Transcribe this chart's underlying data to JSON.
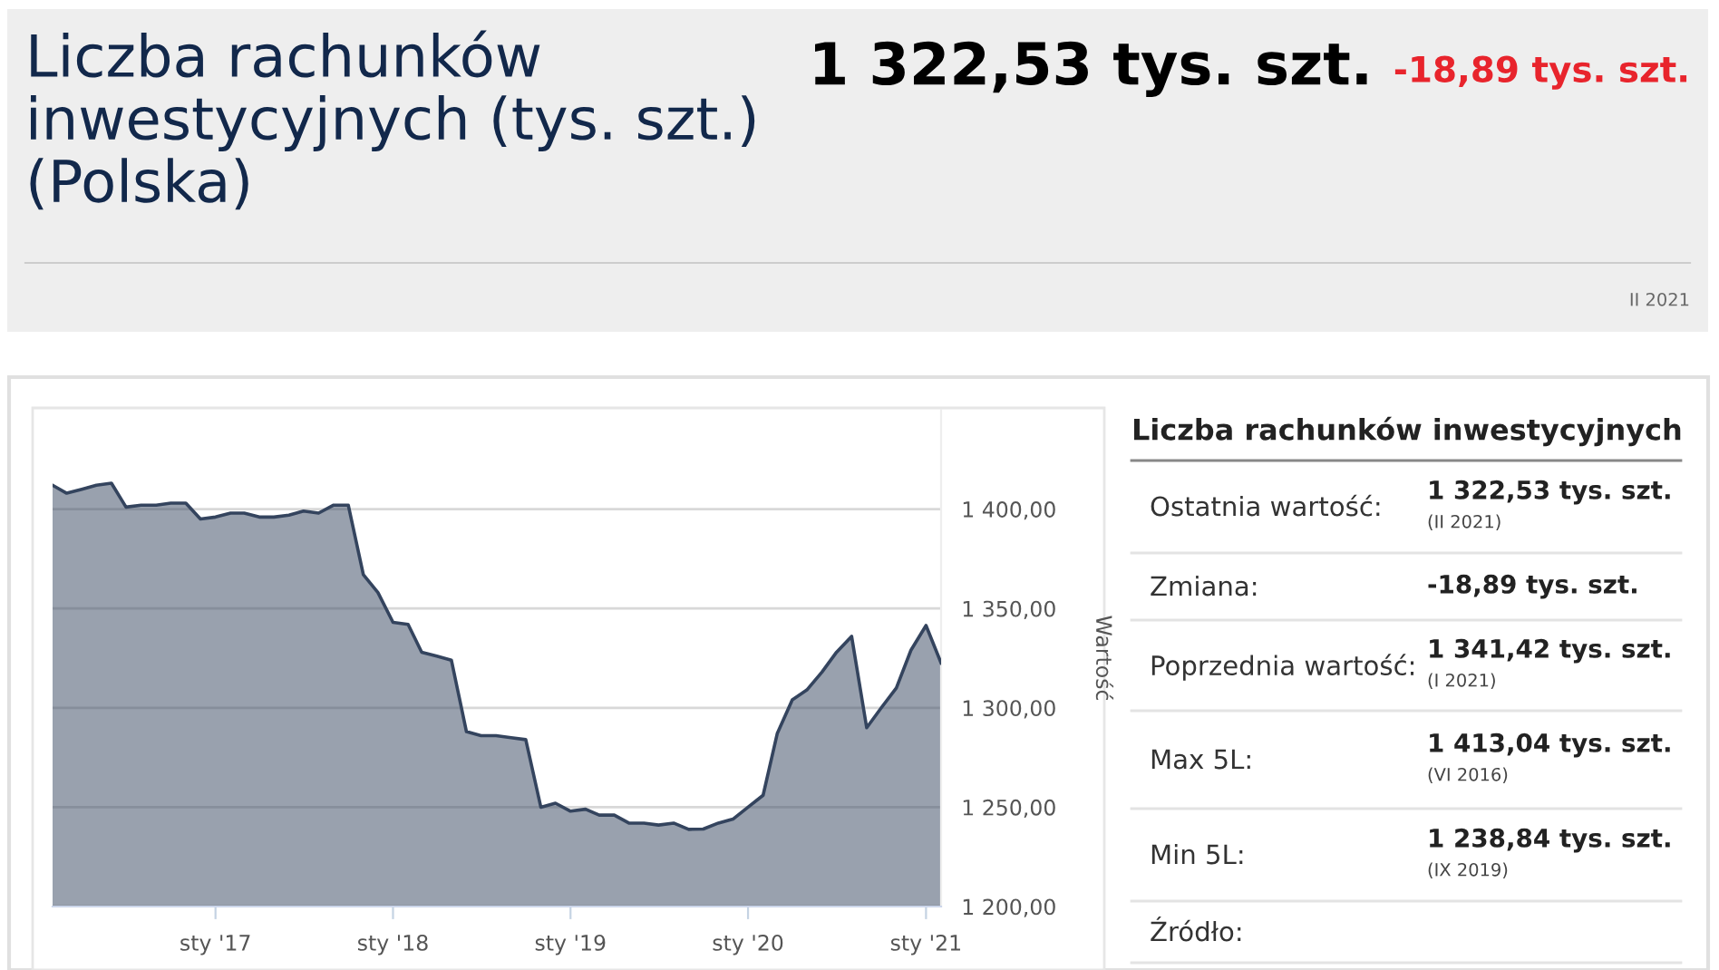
{
  "chart_data": [
    {
      "type": "other",
      "title": "Liczba rachunków inwestycyjnych (tys. szt.) (Polska)",
      "annotations": [
        "1 322,53 tys. szt.",
        "-18,89 tys. szt.",
        "II 2021"
      ]
    },
    {
      "type": "area",
      "ylabel": "Wartość",
      "x": [
        "2016-02",
        "2016-03",
        "2016-04",
        "2016-05",
        "2016-06",
        "2016-07",
        "2016-08",
        "2016-09",
        "2016-10",
        "2016-11",
        "2016-12",
        "2017-01",
        "2017-02",
        "2017-03",
        "2017-04",
        "2017-05",
        "2017-06",
        "2017-07",
        "2017-08",
        "2017-09",
        "2017-10",
        "2017-11",
        "2017-12",
        "2018-01",
        "2018-02",
        "2018-03",
        "2018-04",
        "2018-05",
        "2018-06",
        "2018-07",
        "2018-08",
        "2018-09",
        "2018-10",
        "2018-11",
        "2018-12",
        "2019-01",
        "2019-02",
        "2019-03",
        "2019-04",
        "2019-05",
        "2019-06",
        "2019-07",
        "2019-08",
        "2019-09",
        "2019-10",
        "2019-11",
        "2019-12",
        "2020-01",
        "2020-02",
        "2020-03",
        "2020-04",
        "2020-05",
        "2020-06",
        "2020-07",
        "2020-08",
        "2020-09",
        "2020-10",
        "2020-11",
        "2020-12",
        "2021-01",
        "2021-02"
      ],
      "series": [
        {
          "color": "#34445e",
          "values": [
            1412,
            1408,
            1410,
            1412,
            1413.04,
            1401,
            1402,
            1402,
            1403,
            1403,
            1395,
            1396,
            1398,
            1398,
            1396,
            1396,
            1397,
            1399,
            1398,
            1402,
            1402,
            1367,
            1358,
            1343,
            1342,
            1328,
            1326,
            1324,
            1288,
            1286,
            1286,
            1285,
            1284,
            1250,
            1252,
            1248,
            1249,
            1246,
            1246,
            1242,
            1242,
            1241,
            1242,
            1238.84,
            1239,
            1242,
            1244,
            1250,
            1256,
            1287,
            1304,
            1309,
            1318,
            1328,
            1336,
            1290,
            1300,
            1310,
            1329,
            1341.42,
            1322.53
          ]
        }
      ],
      "xlim": [
        "2016-02",
        "2021-02"
      ],
      "xticks": [
        {
          "value": "2017-01",
          "label": "sty '17"
        },
        {
          "value": "2018-01",
          "label": "sty '18"
        },
        {
          "value": "2019-01",
          "label": "sty '19"
        },
        {
          "value": "2020-01",
          "label": "sty '20"
        },
        {
          "value": "2021-01",
          "label": "sty '21"
        }
      ],
      "ylim": [
        1200,
        1450
      ],
      "yticks": [
        {
          "value": 1200,
          "label": "1 200,00"
        },
        {
          "value": 1250,
          "label": "1 250,00"
        },
        {
          "value": 1300,
          "label": "1 300,00"
        },
        {
          "value": 1350,
          "label": "1 350,00"
        },
        {
          "value": 1400,
          "label": "1 400,00"
        }
      ],
      "grid": "y",
      "legend": false
    },
    {
      "type": "other",
      "title": "Liczba rachunków inwestycyjnych",
      "annotations": [
        "Ostatnia wartość:",
        "1 322,53 tys. szt.",
        "(II 2021)",
        "Zmiana:",
        "-18,89 tys. szt.",
        "Poprzednia wartość:",
        "1 341,42 tys. szt.",
        "(I 2021)",
        "Max 5L:",
        "1 413,04 tys. szt.",
        "(VI 2016)",
        "Min 5L:",
        "1 238,84 tys. szt.",
        "(IX 2019)",
        "Źródło:"
      ]
    }
  ]
}
